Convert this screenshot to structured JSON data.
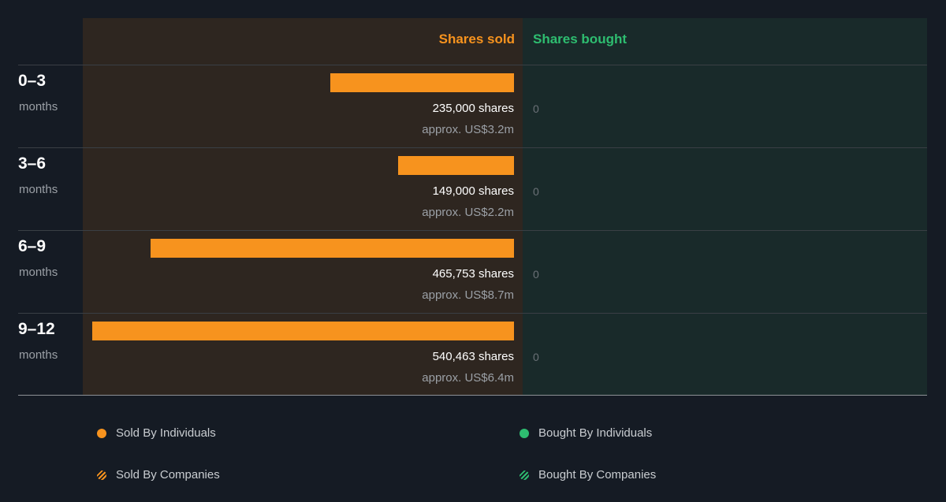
{
  "colors": {
    "sold": "#f7931e",
    "bought": "#2ebd70",
    "sold_panel": "#2e2620",
    "bought_panel": "#192a2a",
    "background": "#151b24"
  },
  "headers": {
    "sold": "Shares sold",
    "bought": "Shares bought"
  },
  "chart_data": {
    "type": "bar",
    "orientation": "horizontal",
    "categories": [
      "0–3 months",
      "3–6 months",
      "6–9 months",
      "9–12 months"
    ],
    "series": [
      {
        "name": "Shares sold",
        "values": [
          235000,
          149000,
          465753,
          540463
        ]
      },
      {
        "name": "Shares bought",
        "values": [
          0,
          0,
          0,
          0
        ]
      }
    ],
    "max_value": 540463
  },
  "rows": [
    {
      "period": "0–3",
      "unit": "months",
      "sold": 235000,
      "shares_label": "235,000 shares",
      "approx": "approx. US$3.2m",
      "bought_label": "0"
    },
    {
      "period": "3–6",
      "unit": "months",
      "sold": 149000,
      "shares_label": "149,000 shares",
      "approx": "approx. US$2.2m",
      "bought_label": "0"
    },
    {
      "period": "6–9",
      "unit": "months",
      "sold": 465753,
      "shares_label": "465,753 shares",
      "approx": "approx. US$8.7m",
      "bought_label": "0"
    },
    {
      "period": "9–12",
      "unit": "months",
      "sold": 540463,
      "shares_label": "540,463 shares",
      "approx": "approx. US$6.4m",
      "bought_label": "0"
    }
  ],
  "legend": [
    {
      "label": "Sold By Individuals",
      "marker": "dot",
      "color": "#f7931e"
    },
    {
      "label": "Bought By Individuals",
      "marker": "dot",
      "color": "#2ebd70"
    },
    {
      "label": "Sold By Companies",
      "marker": "striped",
      "color": "#f7931e"
    },
    {
      "label": "Bought By Companies",
      "marker": "striped",
      "color": "#2ebd70"
    }
  ]
}
